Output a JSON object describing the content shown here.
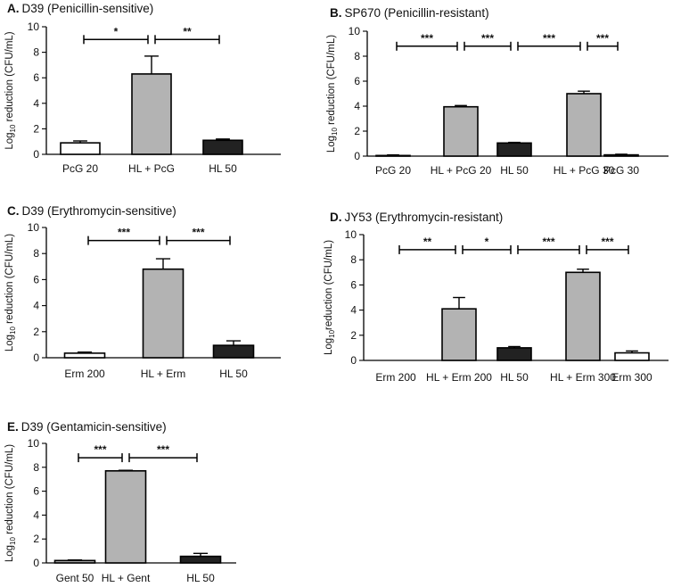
{
  "figure": "antibiotic-combination-panels",
  "colors": {
    "white": "#ffffff",
    "gray": "#b3b3b3",
    "dark": "#222222"
  },
  "chart_data": [
    {
      "id": "A",
      "type": "bar",
      "letter": "A.",
      "title": "D39 (Penicillin-sensitive)",
      "ylabel_main": "Log",
      "ylabel_sub": "10",
      "ylabel_rest": " reduction (CFU/mL)",
      "ylim": [
        0,
        10
      ],
      "yticks": [
        "0",
        "2",
        "4",
        "6",
        "8",
        "10"
      ],
      "categories": [
        "PcG 20",
        "HL + PcG",
        "HL 50"
      ],
      "values": [
        0.9,
        6.3,
        1.1
      ],
      "errors": [
        0.15,
        1.4,
        0.1
      ],
      "fills": [
        "white",
        "gray",
        "dark"
      ],
      "significance": [
        {
          "from": 0,
          "to": 1,
          "level": 9.0,
          "label": "*"
        },
        {
          "from": 1,
          "to": 2,
          "level": 9.0,
          "label": "**"
        }
      ]
    },
    {
      "id": "B",
      "type": "bar",
      "letter": "B.",
      "title": "SP670 (Penicillin-resistant)",
      "ylabel_main": "Log",
      "ylabel_sub": "10",
      "ylabel_rest": " reduction (CFU/mL)",
      "ylim": [
        0,
        10
      ],
      "yticks": [
        "0",
        "2",
        "4",
        "6",
        "8",
        "10"
      ],
      "categories": [
        "PcG 20",
        "HL + PcG 20",
        "HL 50",
        "HL + PcG 30",
        "PcG 30"
      ],
      "values": [
        0.05,
        3.95,
        1.05,
        5.0,
        0.1
      ],
      "errors": [
        0.05,
        0.1,
        0.05,
        0.2,
        0.05
      ],
      "fills": [
        "white",
        "gray",
        "dark",
        "gray",
        "dark"
      ],
      "significance": [
        {
          "from": 0,
          "to": 1,
          "level": 8.8,
          "label": "***"
        },
        {
          "from": 1,
          "to": 2,
          "level": 8.8,
          "label": "***"
        },
        {
          "from": 2,
          "to": 3,
          "level": 8.8,
          "label": "***"
        },
        {
          "from": 3,
          "to": 4,
          "level": 8.8,
          "label": "***"
        }
      ]
    },
    {
      "id": "C",
      "type": "bar",
      "letter": "C.",
      "title": "D39 (Erythromycin-sensitive)",
      "ylabel_main": "Log",
      "ylabel_sub": "10",
      "ylabel_rest": " reduction (CFU/mL)",
      "ylim": [
        0,
        10
      ],
      "yticks": [
        "0",
        "2",
        "4",
        "6",
        "8",
        "10"
      ],
      "categories": [
        "Erm 200",
        "HL + Erm",
        "HL 50"
      ],
      "values": [
        0.35,
        6.8,
        0.95
      ],
      "errors": [
        0.08,
        0.8,
        0.35
      ],
      "fills": [
        "white",
        "gray",
        "dark"
      ],
      "significance": [
        {
          "from": 0,
          "to": 1,
          "level": 9.0,
          "label": "***"
        },
        {
          "from": 1,
          "to": 2,
          "level": 9.0,
          "label": "***"
        }
      ]
    },
    {
      "id": "D",
      "type": "bar",
      "letter": "D.",
      "title": "JY53 (Erythromycin-resistant)",
      "ylabel_main": "Log",
      "ylabel_sub": "10",
      "ylabel_rest": "reduction (CFU/mL)",
      "ylim": [
        0,
        10
      ],
      "yticks": [
        "0",
        "2",
        "4",
        "6",
        "8",
        "10"
      ],
      "categories": [
        "Erm 200",
        "HL + Erm 200",
        "HL 50",
        "HL + Erm 300",
        "Erm 300"
      ],
      "values": [
        0.0,
        4.1,
        1.0,
        7.0,
        0.6
      ],
      "errors": [
        0.0,
        0.9,
        0.1,
        0.25,
        0.15
      ],
      "fills": [
        "white",
        "gray",
        "dark",
        "gray",
        "white"
      ],
      "significance": [
        {
          "from": 0,
          "to": 1,
          "level": 8.8,
          "label": "**"
        },
        {
          "from": 1,
          "to": 2,
          "level": 8.8,
          "label": "*"
        },
        {
          "from": 2,
          "to": 3,
          "level": 8.8,
          "label": "***"
        },
        {
          "from": 3,
          "to": 4,
          "level": 8.8,
          "label": "***"
        }
      ]
    },
    {
      "id": "E",
      "type": "bar",
      "letter": "E.",
      "title": "D39 (Gentamicin-sensitive)",
      "ylabel_main": "Log",
      "ylabel_sub": "10",
      "ylabel_rest": " reduction (CFU/mL)",
      "ylim": [
        0,
        10
      ],
      "yticks": [
        "0",
        "2",
        "4",
        "6",
        "8",
        "10"
      ],
      "categories": [
        "Gent 50",
        "HL + Gent",
        "HL 50"
      ],
      "values": [
        0.2,
        7.7,
        0.55
      ],
      "errors": [
        0.05,
        0.05,
        0.25
      ],
      "fills": [
        "gray",
        "gray",
        "dark"
      ],
      "significance": [
        {
          "from": 0,
          "to": 1,
          "level": 8.8,
          "label": "***"
        },
        {
          "from": 1,
          "to": 2,
          "level": 8.8,
          "label": "***"
        }
      ]
    }
  ]
}
